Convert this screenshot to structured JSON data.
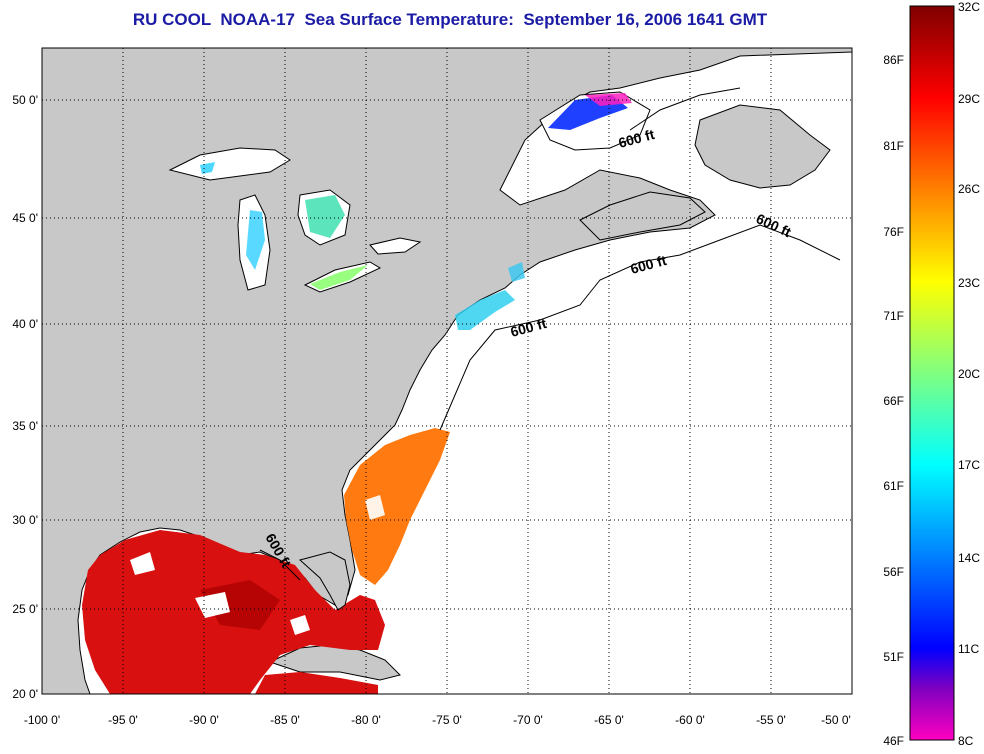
{
  "title": "RU COOL  NOAA-17  Sea Surface Temperature:  September 16, 2006 1641 GMT",
  "longitude_ticks": [
    "-100 0'",
    "-95 0'",
    "-90 0'",
    "-85 0'",
    "-80 0'",
    "-75 0'",
    "-70 0'",
    "-65 0'",
    "-60 0'",
    "-55 0'",
    "-50 0'"
  ],
  "latitude_ticks": [
    "50 0'",
    "45 0'",
    "40 0'",
    "35 0'",
    "30 0'",
    "25 0'",
    "20 0'"
  ],
  "colorbar": {
    "fahrenheit_labels": [
      "86F",
      "81F",
      "76F",
      "71F",
      "66F",
      "61F",
      "56F",
      "51F",
      "46F"
    ],
    "celsius_labels": [
      "32C",
      "29C",
      "26C",
      "23C",
      "20C",
      "17C",
      "14C",
      "11C",
      "8C"
    ],
    "colors": [
      "#7f0000",
      "#ff0000",
      "#ff8000",
      "#ffff00",
      "#80ff80",
      "#00ffff",
      "#0080ff",
      "#0000ff",
      "#8000c0",
      "#ff00c0"
    ]
  },
  "depth_labels": [
    "600 ft",
    "600 ft",
    "600 ft",
    "600 ft",
    "600 ft"
  ],
  "colors": {
    "land": "#c8c8c8",
    "ocean": "#ffffff",
    "title": "#1b1ba5"
  }
}
